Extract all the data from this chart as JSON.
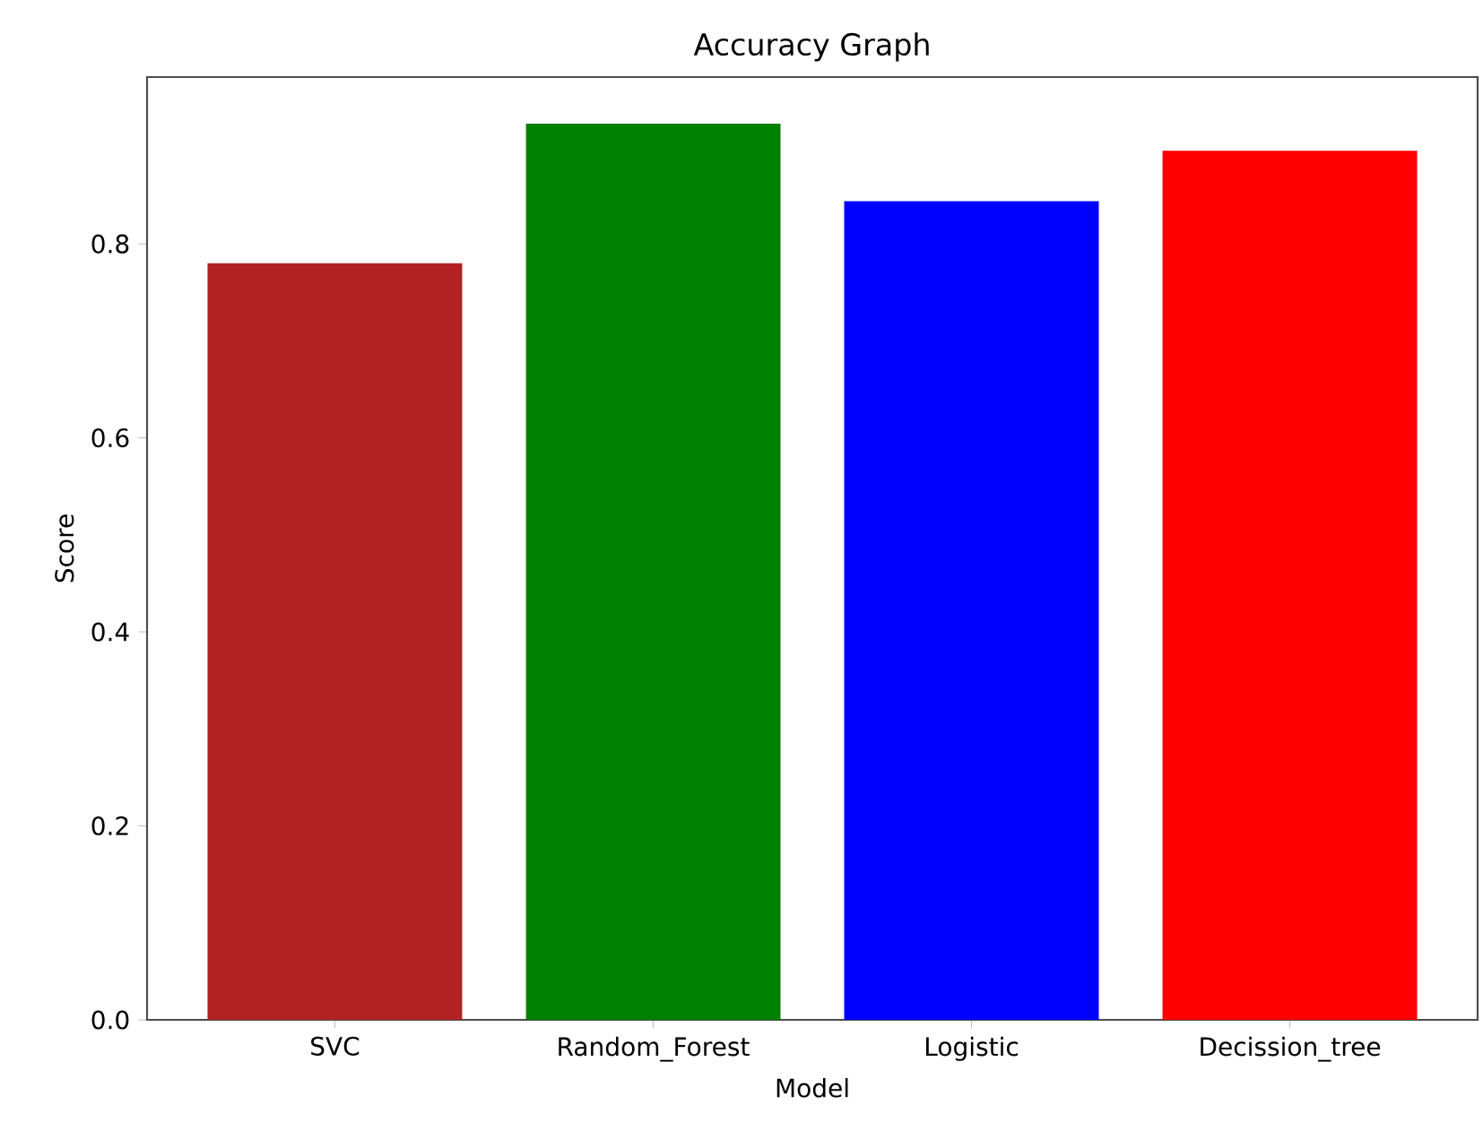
{
  "chart_data": {
    "type": "bar",
    "title": "Accuracy Graph",
    "xlabel": "Model",
    "ylabel": "Score",
    "categories": [
      "SVC",
      "Random_Forest",
      "Logistic",
      "Decission_tree"
    ],
    "values": [
      0.78,
      0.924,
      0.844,
      0.896
    ],
    "colors": [
      "#b22222",
      "#008000",
      "#0000ff",
      "#ff0000"
    ],
    "ylim": [
      0,
      0.972
    ],
    "yticks": [
      {
        "value": 0,
        "label": "0.0"
      },
      {
        "value": 0.2,
        "label": "0.2"
      },
      {
        "value": 0.4,
        "label": "0.4"
      },
      {
        "value": 0.6,
        "label": "0.6"
      },
      {
        "value": 0.8,
        "label": "0.8"
      }
    ]
  }
}
